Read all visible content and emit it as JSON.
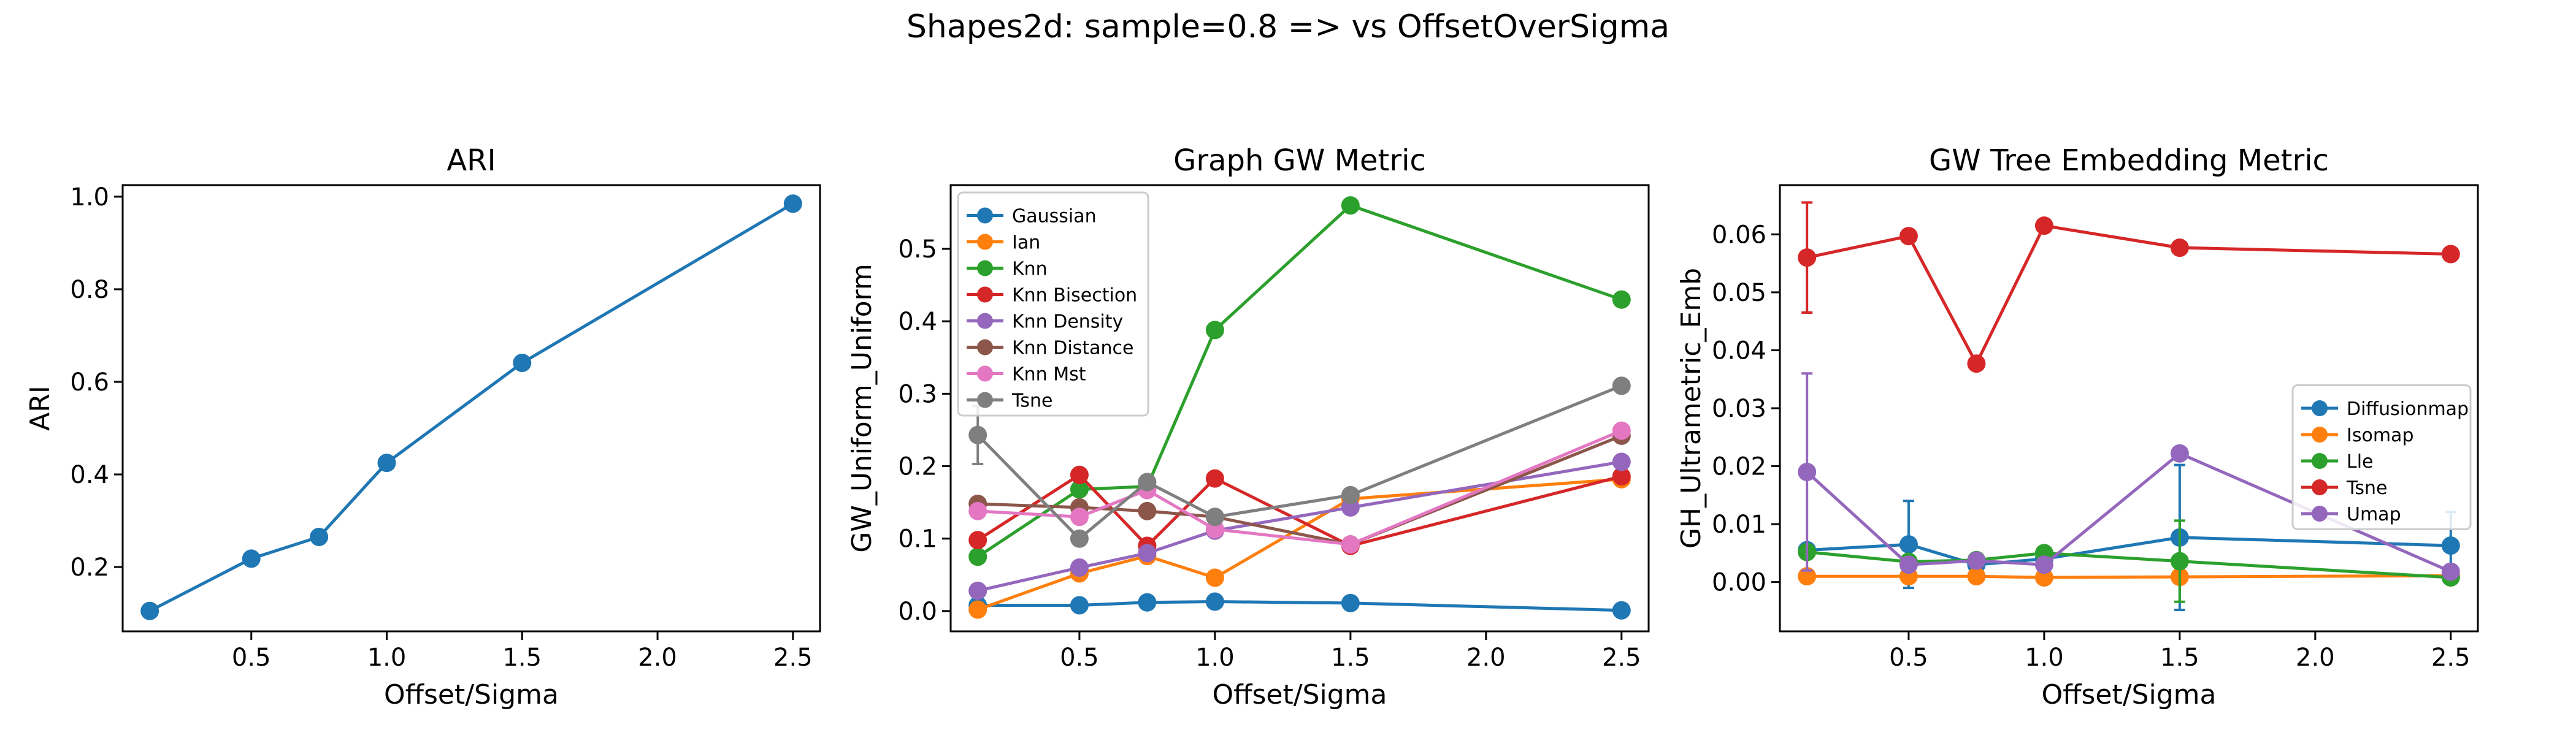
{
  "figure": {
    "suptitle": "Shapes2d: sample=0.8 => vs OffsetOverSigma"
  },
  "colors": {
    "blue": "#1f77b4",
    "orange": "#ff7f0e",
    "green": "#2ca02c",
    "red": "#d62728",
    "purple": "#9467bd",
    "brown": "#8c564b",
    "pink": "#e377c2",
    "gray": "#7f7f7f"
  },
  "chart_data": [
    {
      "type": "line",
      "title": "ARI",
      "xlabel": "Offset/Sigma",
      "ylabel": "ARI",
      "x": [
        0.125,
        0.5,
        0.75,
        1.0,
        1.5,
        2.5
      ],
      "xlim": [
        0.025,
        2.6
      ],
      "ylim": [
        0.061,
        1.025
      ],
      "xticks": [
        0.5,
        1.0,
        1.5,
        2.0,
        2.5
      ],
      "yticks": [
        0.2,
        0.4,
        0.6,
        0.8,
        1.0
      ],
      "xtick_labels": [
        "0.5",
        "1.0",
        "1.5",
        "2.0",
        "2.5"
      ],
      "ytick_labels": [
        "0.2",
        "0.4",
        "0.6",
        "0.8",
        "1.0"
      ],
      "legend": null,
      "series": [
        {
          "color": "#1f77b4",
          "values": [
            0.105,
            0.218,
            0.265,
            0.425,
            0.641,
            0.985
          ]
        }
      ]
    },
    {
      "type": "line",
      "title": "Graph GW Metric",
      "xlabel": "Offset/Sigma",
      "ylabel": "GW_Uniform_Uniform",
      "x": [
        0.125,
        0.5,
        0.75,
        1.0,
        1.5,
        2.5
      ],
      "xlim": [
        0.025,
        2.6
      ],
      "ylim": [
        -0.028,
        0.588
      ],
      "xticks": [
        0.5,
        1.0,
        1.5,
        2.0,
        2.5
      ],
      "yticks": [
        0.0,
        0.1,
        0.2,
        0.3,
        0.4,
        0.5
      ],
      "xtick_labels": [
        "0.5",
        "1.0",
        "1.5",
        "2.0",
        "2.5"
      ],
      "ytick_labels": [
        "0.0",
        "0.1",
        "0.2",
        "0.3",
        "0.4",
        "0.5"
      ],
      "legend": "top-left",
      "series": [
        {
          "name": "Gaussian",
          "color": "#1f77b4",
          "values": [
            0.008,
            0.008,
            0.012,
            0.013,
            0.011,
            0.001
          ]
        },
        {
          "name": "Ian",
          "color": "#ff7f0e",
          "values": [
            0.002,
            0.052,
            0.076,
            0.046,
            0.155,
            0.182
          ]
        },
        {
          "name": "Knn",
          "color": "#2ca02c",
          "values": [
            0.075,
            0.168,
            0.172,
            0.388,
            0.56,
            0.43
          ]
        },
        {
          "name": "Knn Bisection",
          "color": "#d62728",
          "values": [
            0.098,
            0.188,
            0.09,
            0.183,
            0.09,
            0.186
          ]
        },
        {
          "name": "Knn Density",
          "color": "#9467bd",
          "values": [
            0.028,
            0.06,
            0.08,
            0.111,
            0.143,
            0.206
          ]
        },
        {
          "name": "Knn Distance",
          "color": "#8c564b",
          "values": [
            0.148,
            0.143,
            0.138,
            0.13,
            0.092,
            0.242
          ]
        },
        {
          "name": "Knn Mst",
          "color": "#e377c2",
          "values": [
            0.138,
            0.13,
            0.167,
            0.113,
            0.092,
            0.249
          ]
        },
        {
          "name": "Tsne",
          "color": "#7f7f7f",
          "values": [
            0.243,
            0.1,
            0.178,
            0.13,
            0.16,
            0.311
          ],
          "errors": [
            0.04,
            0.0,
            0.0,
            0.0,
            0.0,
            0.0
          ]
        }
      ]
    },
    {
      "type": "line",
      "title": "GW Tree Embedding Metric",
      "xlabel": "Offset/Sigma",
      "ylabel": "GH_Ultrametric_Emb",
      "x": [
        0.125,
        0.5,
        0.75,
        1.0,
        1.5,
        2.5
      ],
      "xlim": [
        0.025,
        2.6
      ],
      "ylim": [
        -0.0085,
        0.0685
      ],
      "xticks": [
        0.5,
        1.0,
        1.5,
        2.0,
        2.5
      ],
      "yticks": [
        0.0,
        0.01,
        0.02,
        0.03,
        0.04,
        0.05,
        0.06
      ],
      "xtick_labels": [
        "0.5",
        "1.0",
        "1.5",
        "2.0",
        "2.5"
      ],
      "ytick_labels": [
        "0.00",
        "0.01",
        "0.02",
        "0.03",
        "0.04",
        "0.05",
        "0.06"
      ],
      "legend": "center-right",
      "series": [
        {
          "name": "Diffusionmap",
          "color": "#1f77b4",
          "values": [
            0.0055,
            0.0065,
            0.003,
            0.004,
            0.0077,
            0.0063
          ],
          "errors": [
            0.001,
            0.0075,
            0.0,
            0.0,
            0.0125,
            0.0058
          ]
        },
        {
          "name": "Isomap",
          "color": "#ff7f0e",
          "values": [
            0.001,
            0.001,
            0.001,
            0.0008,
            0.0009,
            0.0011
          ]
        },
        {
          "name": "Lle",
          "color": "#2ca02c",
          "values": [
            0.0052,
            0.0035,
            0.0038,
            0.005,
            0.0036,
            0.0008
          ],
          "errors": [
            0.0,
            0.0,
            0.0,
            0.0,
            0.007,
            0.0
          ]
        },
        {
          "name": "Tsne",
          "color": "#d62728",
          "values": [
            0.056,
            0.0597,
            0.0377,
            0.0615,
            0.0577,
            0.0566
          ],
          "errors": [
            0.0095,
            0.0,
            0.0,
            0.0,
            0.0,
            0.0
          ]
        },
        {
          "name": "Umap",
          "color": "#9467bd",
          "values": [
            0.019,
            0.003,
            0.0037,
            0.003,
            0.0222,
            0.0018
          ],
          "errors": [
            0.017,
            0.0,
            0.0,
            0.0,
            0.0,
            0.0
          ]
        }
      ]
    }
  ]
}
